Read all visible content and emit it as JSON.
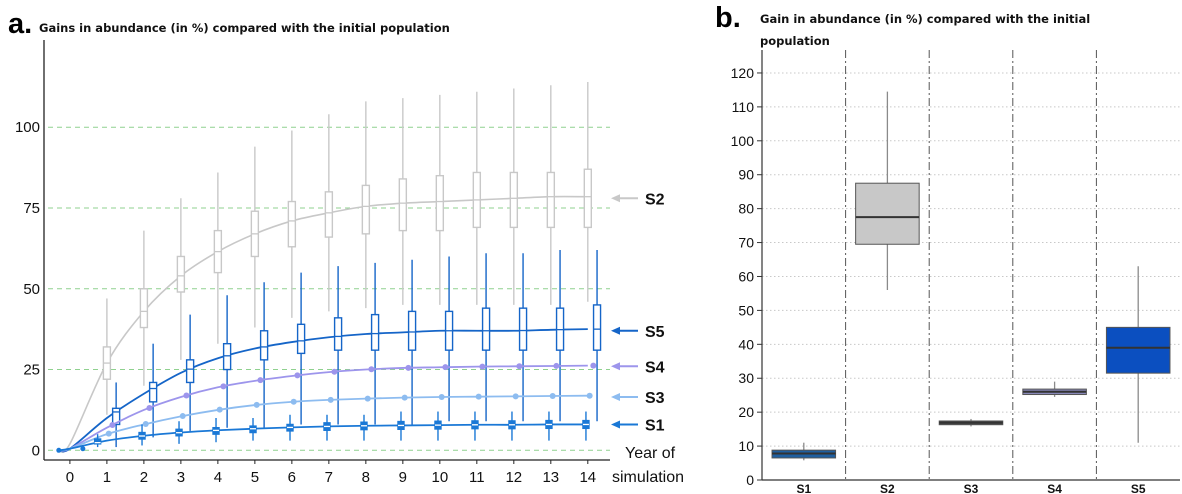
{
  "panels": {
    "a": {
      "label": "a.",
      "title": "Gains in abundance (in %) compared with the initial population"
    },
    "b": {
      "label": "b.",
      "title_line1": "Gain in abundance (in %) compared with the initial",
      "title_line2": "population"
    }
  },
  "colors": {
    "S1": "#1a78d6",
    "S2": "#c8c8c8",
    "S3": "#8dbcf0",
    "S4": "#9d95ec",
    "S5": "#1565c8",
    "grid_green": "#8fd18f",
    "box_b_S1": "#1f5fa0",
    "box_b_S2": "#c8c8c8",
    "box_b_S3": "#4a4a4a",
    "box_b_S4": "#8888b8",
    "box_b_S5": "#0b4fc0"
  },
  "chart_data": [
    {
      "type": "line",
      "panel": "a",
      "title": "Gains in abundance (in %) compared with the initial population",
      "xlabel_line1": "Year of",
      "xlabel_line2": "simulation",
      "ylabel": "",
      "x_ticks": [
        "0",
        "1",
        "2",
        "3",
        "4",
        "5",
        "6",
        "7",
        "8",
        "9",
        "10",
        "11",
        "12",
        "13",
        "14"
      ],
      "y_ticks": [
        "0",
        "25",
        "50",
        "75",
        "100"
      ],
      "xlim": [
        -0.7,
        14.6
      ],
      "ylim": [
        -3,
        127
      ],
      "grid": "horizontal dashed at 0, 25, 50, 75, 100",
      "series": [
        {
          "name": "S2",
          "x": [
            -0.3,
            0,
            1,
            2,
            3,
            4,
            5,
            6,
            7,
            8,
            9,
            10,
            11,
            12,
            13,
            14
          ],
          "y": [
            0,
            2,
            27,
            43,
            54,
            61.5,
            67,
            71,
            73.5,
            75.5,
            76.5,
            77,
            77.5,
            78,
            78.5,
            78.5
          ],
          "boxes": [
            {
              "x": 1,
              "q1": 22,
              "q3": 32,
              "wlo": 11,
              "whi": 47
            },
            {
              "x": 2,
              "q1": 38,
              "q3": 50,
              "wlo": 20,
              "whi": 68
            },
            {
              "x": 3,
              "q1": 49,
              "q3": 60,
              "wlo": 28,
              "whi": 78
            },
            {
              "x": 4,
              "q1": 55,
              "q3": 68,
              "wlo": 33,
              "whi": 86
            },
            {
              "x": 5,
              "q1": 60,
              "q3": 74,
              "wlo": 38,
              "whi": 94
            },
            {
              "x": 6,
              "q1": 63,
              "q3": 77,
              "wlo": 41,
              "whi": 99
            },
            {
              "x": 7,
              "q1": 66,
              "q3": 80,
              "wlo": 43,
              "whi": 104
            },
            {
              "x": 8,
              "q1": 67,
              "q3": 82,
              "wlo": 44,
              "whi": 108
            },
            {
              "x": 9,
              "q1": 68,
              "q3": 84,
              "wlo": 45,
              "whi": 109
            },
            {
              "x": 10,
              "q1": 68,
              "q3": 85,
              "wlo": 45,
              "whi": 110
            },
            {
              "x": 11,
              "q1": 69,
              "q3": 86,
              "wlo": 45,
              "whi": 111
            },
            {
              "x": 12,
              "q1": 69,
              "q3": 86,
              "wlo": 45,
              "whi": 112
            },
            {
              "x": 13,
              "q1": 69,
              "q3": 86,
              "wlo": 45,
              "whi": 113
            },
            {
              "x": 14,
              "q1": 69,
              "q3": 87,
              "wlo": 46,
              "whi": 114
            }
          ]
        },
        {
          "name": "S5",
          "x": [
            -0.3,
            0,
            1,
            2,
            3,
            4,
            5,
            6,
            7,
            8,
            9,
            10,
            11,
            12,
            13,
            14
          ],
          "y": [
            0,
            0.5,
            10,
            17.5,
            24,
            28.5,
            31.5,
            33.5,
            35,
            36,
            36.5,
            37,
            37,
            37,
            37.3,
            37.5
          ],
          "boxes": [
            {
              "x": 1.25,
              "q1": 8,
              "q3": 13,
              "wlo": 1,
              "whi": 21
            },
            {
              "x": 2.25,
              "q1": 15,
              "q3": 21,
              "wlo": 4,
              "whi": 33
            },
            {
              "x": 3.25,
              "q1": 21,
              "q3": 28,
              "wlo": 6,
              "whi": 42
            },
            {
              "x": 4.25,
              "q1": 25,
              "q3": 33,
              "wlo": 7,
              "whi": 48
            },
            {
              "x": 5.25,
              "q1": 28,
              "q3": 37,
              "wlo": 7,
              "whi": 52
            },
            {
              "x": 6.25,
              "q1": 30,
              "q3": 39,
              "wlo": 8,
              "whi": 55
            },
            {
              "x": 7.25,
              "q1": 31,
              "q3": 41,
              "wlo": 8,
              "whi": 57
            },
            {
              "x": 8.25,
              "q1": 31,
              "q3": 42,
              "wlo": 8,
              "whi": 58
            },
            {
              "x": 9.25,
              "q1": 31,
              "q3": 43,
              "wlo": 8,
              "whi": 59
            },
            {
              "x": 10.25,
              "q1": 31,
              "q3": 43,
              "wlo": 9,
              "whi": 60
            },
            {
              "x": 11.25,
              "q1": 31,
              "q3": 44,
              "wlo": 9,
              "whi": 61
            },
            {
              "x": 12.25,
              "q1": 31,
              "q3": 44,
              "wlo": 9,
              "whi": 61
            },
            {
              "x": 13.25,
              "q1": 31,
              "q3": 44,
              "wlo": 9,
              "whi": 62
            },
            {
              "x": 14.25,
              "q1": 31,
              "q3": 45,
              "wlo": 9,
              "whi": 62
            }
          ]
        },
        {
          "name": "S4",
          "x": [
            -0.3,
            0,
            1,
            2,
            3,
            4,
            5,
            6,
            7,
            8,
            9,
            10,
            11,
            12,
            13,
            14
          ],
          "y": [
            0,
            0.5,
            7,
            12.5,
            16.5,
            19.5,
            21.5,
            23,
            24.2,
            25,
            25.5,
            25.7,
            25.9,
            26,
            26.1,
            26.2
          ],
          "points": [
            1.15,
            2.15,
            3.15,
            4.15,
            5.15,
            6.15,
            7.15,
            8.15,
            9.15,
            10.15,
            11.15,
            12.15,
            13.15,
            14.15
          ]
        },
        {
          "name": "S3",
          "x": [
            -0.3,
            0,
            1,
            2,
            3,
            4,
            5,
            6,
            7,
            8,
            9,
            10,
            11,
            12,
            13,
            14
          ],
          "y": [
            0,
            0.5,
            5,
            8,
            10.5,
            12.5,
            14,
            15,
            15.6,
            16,
            16.3,
            16.5,
            16.6,
            16.7,
            16.8,
            16.9
          ],
          "points": [
            1.05,
            2.05,
            3.05,
            4.05,
            5.05,
            6.05,
            7.05,
            8.05,
            9.05,
            10.05,
            11.05,
            12.05,
            13.05,
            14.05
          ]
        },
        {
          "name": "S1",
          "x": [
            -0.3,
            0,
            1,
            2,
            3,
            4,
            5,
            6,
            7,
            8,
            9,
            10,
            11,
            12,
            13,
            14
          ],
          "y": [
            0,
            0.5,
            3,
            4.5,
            5.5,
            6.2,
            6.7,
            7.1,
            7.4,
            7.6,
            7.7,
            7.8,
            7.9,
            7.9,
            8,
            8
          ],
          "boxes": [
            {
              "x": 0.75,
              "q1": 2,
              "q3": 3.5,
              "wlo": 1,
              "whi": 5
            },
            {
              "x": 1.95,
              "q1": 3.5,
              "q3": 5.5,
              "wlo": 1.5,
              "whi": 8
            },
            {
              "x": 2.95,
              "q1": 4.5,
              "q3": 6.5,
              "wlo": 2,
              "whi": 9
            },
            {
              "x": 3.95,
              "q1": 5,
              "q3": 7,
              "wlo": 2.5,
              "whi": 10
            },
            {
              "x": 4.95,
              "q1": 5.5,
              "q3": 7.5,
              "wlo": 3,
              "whi": 10
            },
            {
              "x": 5.95,
              "q1": 6,
              "q3": 8,
              "wlo": 3,
              "whi": 11
            },
            {
              "x": 6.95,
              "q1": 6.2,
              "q3": 8.5,
              "wlo": 3,
              "whi": 11
            },
            {
              "x": 7.95,
              "q1": 6.4,
              "q3": 8.7,
              "wlo": 3,
              "whi": 11
            },
            {
              "x": 8.95,
              "q1": 6.5,
              "q3": 8.9,
              "wlo": 3,
              "whi": 12
            },
            {
              "x": 9.95,
              "q1": 6.6,
              "q3": 9,
              "wlo": 3,
              "whi": 12
            },
            {
              "x": 10.95,
              "q1": 6.7,
              "q3": 9.1,
              "wlo": 3,
              "whi": 12
            },
            {
              "x": 11.95,
              "q1": 6.7,
              "q3": 9.1,
              "wlo": 3,
              "whi": 12
            },
            {
              "x": 12.95,
              "q1": 6.8,
              "q3": 9.2,
              "wlo": 3,
              "whi": 12
            },
            {
              "x": 13.95,
              "q1": 6.8,
              "q3": 9.2,
              "wlo": 3,
              "whi": 12
            }
          ]
        }
      ],
      "legend": [
        {
          "label": "S2",
          "y": 78
        },
        {
          "label": "S5",
          "y": 37
        },
        {
          "label": "S4",
          "y": 26
        },
        {
          "label": "S3",
          "y": 16.5
        },
        {
          "label": "S1",
          "y": 8
        }
      ]
    },
    {
      "type": "box",
      "panel": "b",
      "title": "Gain in abundance (in %) compared with the initial population",
      "categories": [
        "S1",
        "S2",
        "S3",
        "S4",
        "S5"
      ],
      "y_ticks": [
        "0",
        "10",
        "20",
        "30",
        "40",
        "50",
        "60",
        "70",
        "80",
        "90",
        "100",
        "110",
        "120"
      ],
      "ylim": [
        0,
        125
      ],
      "grid": "horizontal dotted every 10; vertical dash-dot separators between categories",
      "boxes": [
        {
          "name": "S1",
          "q1": 6.5,
          "median": 7.8,
          "q3": 8.8,
          "wlo": 5.8,
          "whi": 11
        },
        {
          "name": "S2",
          "q1": 69.5,
          "median": 77.5,
          "q3": 87.5,
          "wlo": 56,
          "whi": 114.5
        },
        {
          "name": "S3",
          "q1": 16.3,
          "median": 16.9,
          "q3": 17.4,
          "wlo": 15.8,
          "whi": 18
        },
        {
          "name": "S4",
          "q1": 25.2,
          "median": 26,
          "q3": 26.8,
          "wlo": 24.5,
          "whi": 29
        },
        {
          "name": "S5",
          "q1": 31.5,
          "median": 39,
          "q3": 45,
          "wlo": 11,
          "whi": 63
        }
      ]
    }
  ]
}
